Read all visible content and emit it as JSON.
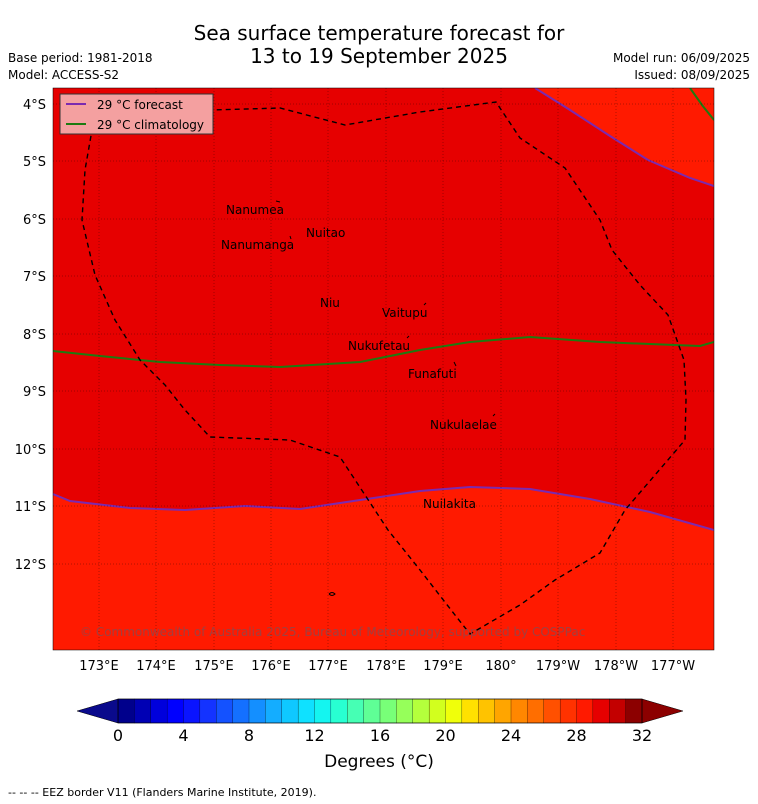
{
  "header": {
    "title_line1": "Sea surface temperature forecast for",
    "title_line2": "13 to 19 September 2025",
    "base_period": "Base period: 1981-2018",
    "model": "Model: ACCESS-S2",
    "model_run": "Model run: 06/09/2025",
    "issued": "Issued: 08/09/2025"
  },
  "map": {
    "colors": {
      "warm": "#e60000",
      "hot": "#ff1a00",
      "forecast_line": "#7b2ab0",
      "climatology_line": "#1e7a10",
      "eez": "#000000"
    },
    "lat_labels": [
      "4°S",
      "5°S",
      "6°S",
      "7°S",
      "8°S",
      "9°S",
      "10°S",
      "11°S",
      "12°S"
    ],
    "lon_labels": [
      "173°E",
      "174°E",
      "175°E",
      "176°E",
      "177°E",
      "178°E",
      "179°E",
      "180°",
      "179°W",
      "178°W",
      "177°W"
    ],
    "islands": [
      {
        "name": "Nanumea"
      },
      {
        "name": "Nuitao"
      },
      {
        "name": "Nanumanga"
      },
      {
        "name": "Niu"
      },
      {
        "name": "Vaitupu"
      },
      {
        "name": "Nukufetau"
      },
      {
        "name": "Funafuti"
      },
      {
        "name": "Nukulaelae"
      },
      {
        "name": "Nuilakita"
      }
    ],
    "legend": [
      {
        "label": "29 °C  forecast"
      },
      {
        "label": "29 °C  climatology"
      }
    ],
    "copyright": "© Commonwealth of Australia 2025, Bureau of Meteorology, supported by COSPPac"
  },
  "colorbar": {
    "ticks": [
      "0",
      "4",
      "8",
      "12",
      "16",
      "20",
      "24",
      "28",
      "32"
    ],
    "label": "Degrees (°C)",
    "colors": [
      "#00008c",
      "#0000b4",
      "#0000dc",
      "#0000ff",
      "#0a14ff",
      "#1433ff",
      "#1452ff",
      "#1470ff",
      "#148fff",
      "#14adff",
      "#0fc8ff",
      "#0fe1ff",
      "#14f5f0",
      "#28ffd2",
      "#46ffb4",
      "#5fff96",
      "#78ff78",
      "#96ff5a",
      "#b4ff3c",
      "#d2ff1e",
      "#f0ff0a",
      "#ffe100",
      "#ffc300",
      "#ffa500",
      "#ff8700",
      "#ff6e00",
      "#ff5000",
      "#ff3200",
      "#ff1a00",
      "#e60000",
      "#c30000",
      "#8c0000"
    ]
  },
  "footer": {
    "eez_note": "--  --  -- EEZ border V11 (Flanders Marine Institute, 2019)."
  }
}
